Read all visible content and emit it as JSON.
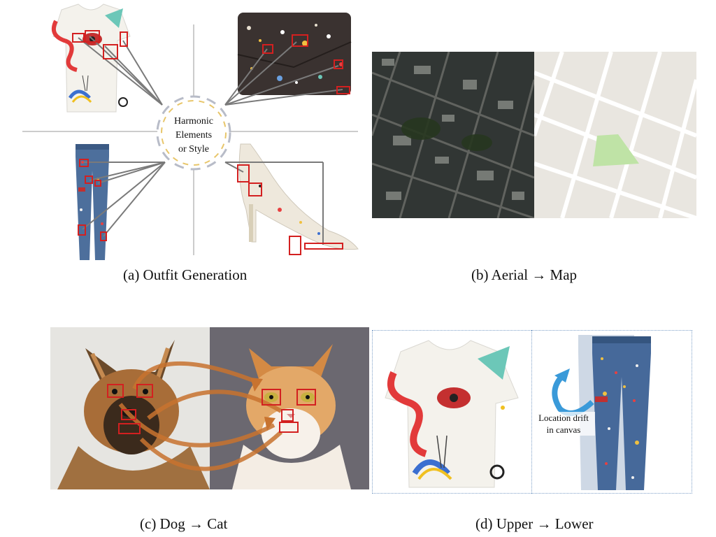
{
  "panel_a": {
    "caption": "(a) Outfit Generation",
    "hub_line1": "Harmonic",
    "hub_line2": "Elements",
    "hub_line3": "or Style"
  },
  "panel_b": {
    "caption": "(b) Aerial → Map"
  },
  "panel_c": {
    "caption": "(c) Dog → Cat"
  },
  "panel_d": {
    "caption": "(d) Upper → Lower",
    "annotation_line1": "Location drift",
    "annotation_line2": "in canvas"
  },
  "colors": {
    "highlight_box": "#d32020",
    "arrow_orange": "#c8732f",
    "arrow_blue": "#3a9ad9",
    "hub_dash_gold": "#e8c66a",
    "hub_dash_gray": "#b8bcc8",
    "map_park": "#bfe3a6"
  }
}
